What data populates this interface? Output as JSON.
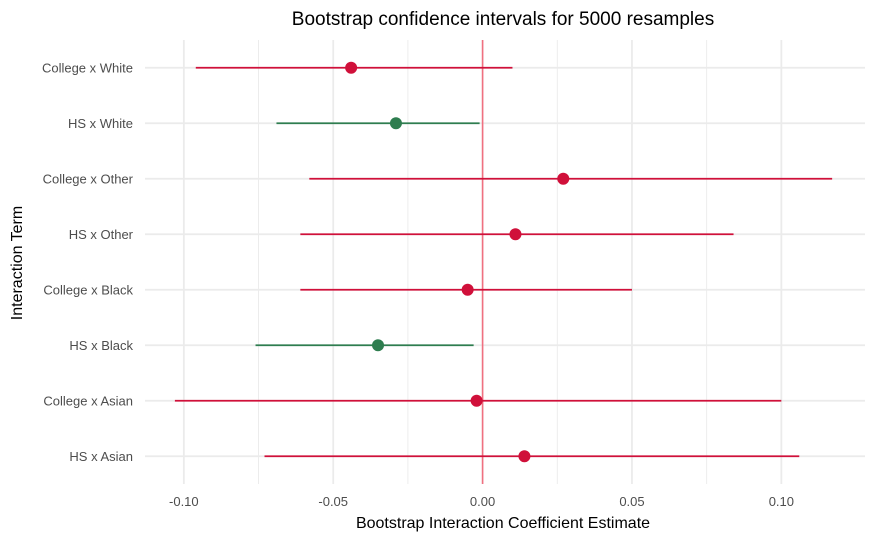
{
  "chart_data": {
    "type": "scatter",
    "subtype": "point-range",
    "title": "Bootstrap confidence intervals for 5000 resamples",
    "xlabel": "Bootstrap Interaction Coefficient Estimate",
    "ylabel": "Interaction Term",
    "xlim": [
      -0.113,
      0.128
    ],
    "xticks": [
      -0.1,
      -0.05,
      0.0,
      0.05,
      0.1
    ],
    "xtick_labels": [
      "-0.10",
      "-0.05",
      "0.00",
      "0.05",
      "0.10"
    ],
    "reference_line_x": 0.0,
    "grid": true,
    "legend": "none",
    "colors": {
      "not_significant": "#d0103a",
      "significant": "#2e7d4f",
      "reference_line": "#f07080",
      "grid": "#ebebeb"
    },
    "series": [
      {
        "label": "College x White",
        "estimate": -0.044,
        "lower": -0.096,
        "upper": 0.01,
        "significant": false
      },
      {
        "label": "HS x White",
        "estimate": -0.029,
        "lower": -0.069,
        "upper": -0.001,
        "significant": true
      },
      {
        "label": "College x Other",
        "estimate": 0.027,
        "lower": -0.058,
        "upper": 0.117,
        "significant": false
      },
      {
        "label": "HS x Other",
        "estimate": 0.011,
        "lower": -0.061,
        "upper": 0.084,
        "significant": false
      },
      {
        "label": "College x Black",
        "estimate": -0.005,
        "lower": -0.061,
        "upper": 0.05,
        "significant": false
      },
      {
        "label": "HS x Black",
        "estimate": -0.035,
        "lower": -0.076,
        "upper": -0.003,
        "significant": true
      },
      {
        "label": "College x Asian",
        "estimate": -0.002,
        "lower": -0.103,
        "upper": 0.1,
        "significant": false
      },
      {
        "label": "HS x Asian",
        "estimate": 0.014,
        "lower": -0.073,
        "upper": 0.106,
        "significant": false
      }
    ]
  }
}
